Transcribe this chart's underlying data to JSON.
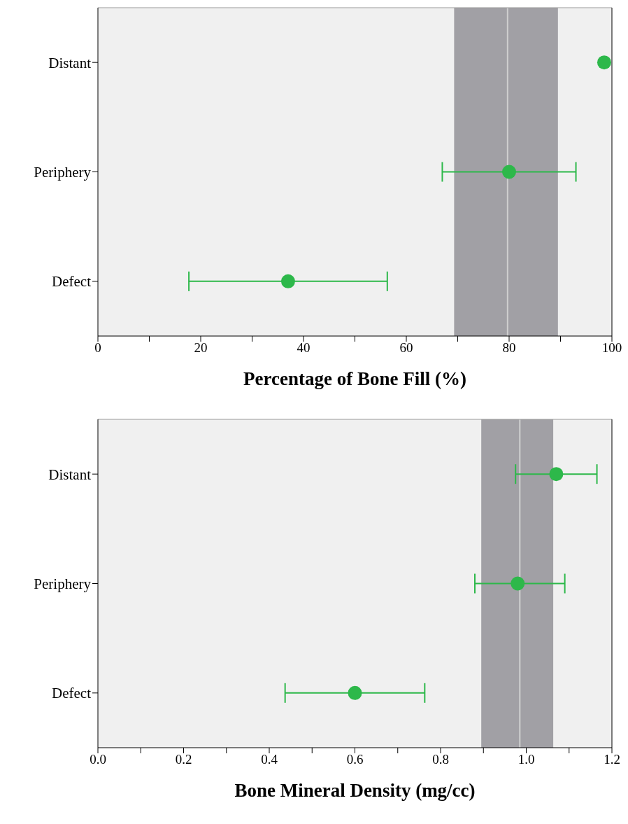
{
  "chart_data": [
    {
      "type": "scatter",
      "orientation": "horizontal",
      "categories": [
        "Distant",
        "Periphery",
        "Defect"
      ],
      "values": [
        98.5,
        80,
        37
      ],
      "errors": [
        null,
        [
          67,
          93
        ],
        [
          17.7,
          56.3
        ]
      ],
      "color": "#2db84a",
      "marker": "circle",
      "xlabel": "Percentage of Bone Fill (%)",
      "xlim": [
        0,
        100
      ],
      "xticks": [
        0,
        {
          "value": 10,
          "label": null
        },
        20,
        {
          "value": 30,
          "label": null
        },
        40,
        {
          "value": 50,
          "label": null
        },
        60,
        {
          "value": 70,
          "label": null
        },
        80,
        {
          "value": 90,
          "label": null
        },
        100
      ],
      "bands": [
        {
          "axis": "x",
          "from": 69.3,
          "to": 89.5,
          "color": "#a1a0a5"
        }
      ],
      "ref_lines": [
        {
          "axis": "x",
          "value": 79.7,
          "color": "#d0d0d0"
        }
      ],
      "grid": false
    },
    {
      "type": "scatter",
      "orientation": "horizontal",
      "categories": [
        "Distant",
        "Periphery",
        "Defect"
      ],
      "values": [
        1.07,
        0.98,
        0.6
      ],
      "errors": [
        [
          0.975,
          1.165
        ],
        [
          0.88,
          1.09
        ],
        [
          0.437,
          0.763
        ]
      ],
      "color": "#2db84a",
      "marker": "circle",
      "xlabel": "Bone Mineral  Density (mg/cc)",
      "xlim": [
        0,
        1.2
      ],
      "xticks": [
        {
          "value": 0,
          "label": "0.0"
        },
        {
          "value": 0.1,
          "label": null
        },
        0.2,
        {
          "value": 0.3,
          "label": null
        },
        0.4,
        {
          "value": 0.5,
          "label": null
        },
        0.6,
        {
          "value": 0.7,
          "label": null
        },
        0.8,
        {
          "value": 0.9,
          "label": null
        },
        {
          "value": 1,
          "label": "1.0"
        },
        {
          "value": 1.1,
          "label": null
        },
        1.2
      ],
      "bands": [
        {
          "axis": "x",
          "from": 0.895,
          "to": 1.063,
          "color": "#a1a0a5"
        }
      ],
      "ref_lines": [
        {
          "axis": "x",
          "value": 0.985,
          "color": "#d0d0d0"
        }
      ],
      "grid": false
    }
  ]
}
